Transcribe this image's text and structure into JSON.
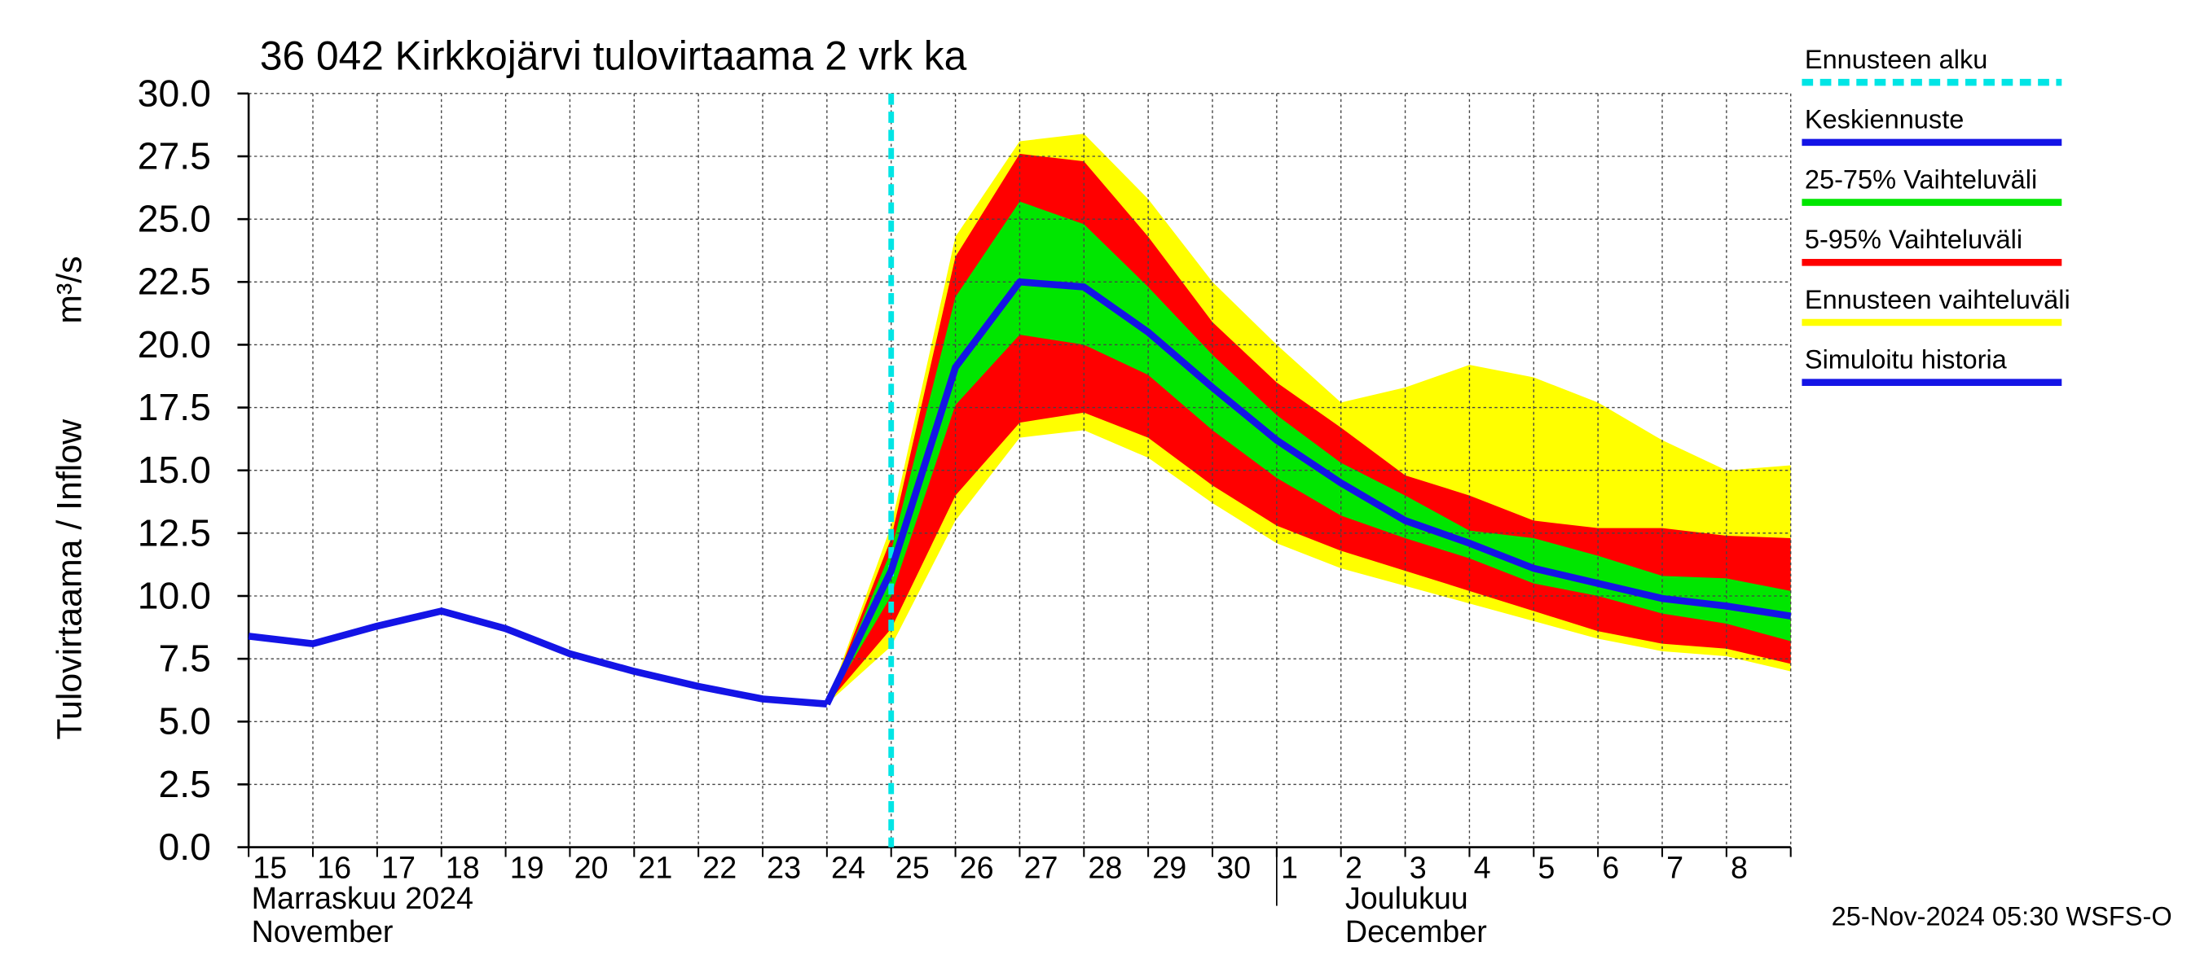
{
  "chart_data": {
    "type": "line",
    "title": "36 042 Kirkkojärvi tulovirtaama 2 vrk ka",
    "y_label": "Tulovirtaama / Inflow",
    "y_unit": "m³/s",
    "months": [
      {
        "line1": "Marraskuu 2024",
        "line2": "November",
        "at": "15"
      },
      {
        "line1": "Joulukuu",
        "line2": "December",
        "at": "1"
      }
    ],
    "footer": "25-Nov-2024 05:30 WSFS-O",
    "categories": [
      "15",
      "16",
      "17",
      "18",
      "19",
      "20",
      "21",
      "22",
      "23",
      "24",
      "25",
      "26",
      "27",
      "28",
      "29",
      "30",
      "1",
      "2",
      "3",
      "4",
      "5",
      "6",
      "7",
      "8",
      null
    ],
    "ylim": [
      0,
      30
    ],
    "yticks": [
      {
        "value": 0,
        "label": "0.0"
      },
      {
        "value": 2.5,
        "label": "2.5"
      },
      {
        "value": 5,
        "label": "5.0"
      },
      {
        "value": 7.5,
        "label": "7.5"
      },
      {
        "value": 10,
        "label": "10.0"
      },
      {
        "value": 12.5,
        "label": "12.5"
      },
      {
        "value": 15,
        "label": "15.0"
      },
      {
        "value": 17.5,
        "label": "17.5"
      },
      {
        "value": 20,
        "label": "20.0"
      },
      {
        "value": 22.5,
        "label": "22.5"
      },
      {
        "value": 25,
        "label": "25.0"
      },
      {
        "value": 27.5,
        "label": "27.5"
      },
      {
        "value": 30,
        "label": "30.0"
      }
    ],
    "grid": true,
    "series": [
      {
        "name": "Ennusteen alku",
        "type": "vline",
        "color": "#00e5e5",
        "at": "25"
      },
      {
        "name": "Keskiennuste",
        "type": "line",
        "color": "#1414e6",
        "values": [
          null,
          null,
          null,
          null,
          null,
          null,
          null,
          null,
          null,
          5.7,
          11.0,
          19.1,
          22.5,
          22.3,
          20.5,
          18.3,
          16.2,
          14.5,
          13.0,
          12.1,
          11.1,
          10.5,
          9.9,
          9.6,
          9.2
        ]
      },
      {
        "name": "25-75% Vaihteluväli",
        "type": "band",
        "color": "#00e600",
        "values": [
          null,
          null,
          null,
          null,
          null,
          null,
          null,
          null,
          null,
          5.7,
          11.8,
          21.9,
          25.7,
          24.8,
          22.3,
          19.6,
          17.2,
          15.3,
          14.0,
          12.6,
          12.3,
          11.6,
          10.8,
          10.7,
          10.2
        ],
        "lower": [
          null,
          null,
          null,
          null,
          null,
          null,
          null,
          null,
          null,
          5.7,
          10.0,
          17.6,
          20.4,
          20.0,
          18.8,
          16.6,
          14.7,
          13.2,
          12.3,
          11.5,
          10.5,
          10.0,
          9.3,
          8.9,
          8.2
        ]
      },
      {
        "name": "5-95% Vaihteluväli",
        "type": "band",
        "color": "#ff0000",
        "values": [
          null,
          null,
          null,
          null,
          null,
          null,
          null,
          null,
          null,
          5.7,
          12.3,
          23.5,
          27.6,
          27.3,
          24.3,
          20.9,
          18.5,
          16.7,
          14.8,
          14.0,
          13.0,
          12.7,
          12.7,
          12.4,
          12.3
        ],
        "lower": [
          null,
          null,
          null,
          null,
          null,
          null,
          null,
          null,
          null,
          5.7,
          8.7,
          14.0,
          16.9,
          17.3,
          16.3,
          14.4,
          12.8,
          11.8,
          11.0,
          10.2,
          9.4,
          8.6,
          8.1,
          7.9,
          7.3
        ]
      },
      {
        "name": "Ennusteen vaihteluväli",
        "type": "band",
        "color": "#ffff00",
        "values": [
          null,
          null,
          null,
          null,
          null,
          null,
          null,
          null,
          null,
          5.7,
          12.8,
          24.3,
          28.1,
          28.4,
          25.8,
          22.5,
          20.0,
          17.7,
          18.3,
          19.2,
          18.7,
          17.7,
          16.2,
          15.0,
          15.2
        ],
        "lower": [
          null,
          null,
          null,
          null,
          null,
          null,
          null,
          null,
          null,
          5.7,
          8.0,
          13.0,
          16.3,
          16.6,
          15.5,
          13.7,
          12.1,
          11.1,
          10.4,
          9.7,
          9.0,
          8.3,
          7.8,
          7.6,
          7.0
        ]
      },
      {
        "name": "Simuloitu historia",
        "type": "line",
        "color": "#1414e6",
        "values": [
          8.4,
          8.1,
          8.8,
          9.4,
          8.7,
          7.7,
          7.0,
          6.4,
          5.9,
          5.7,
          null,
          null,
          null,
          null,
          null,
          null,
          null,
          null,
          null,
          null,
          null,
          null,
          null,
          null,
          null
        ]
      }
    ]
  }
}
